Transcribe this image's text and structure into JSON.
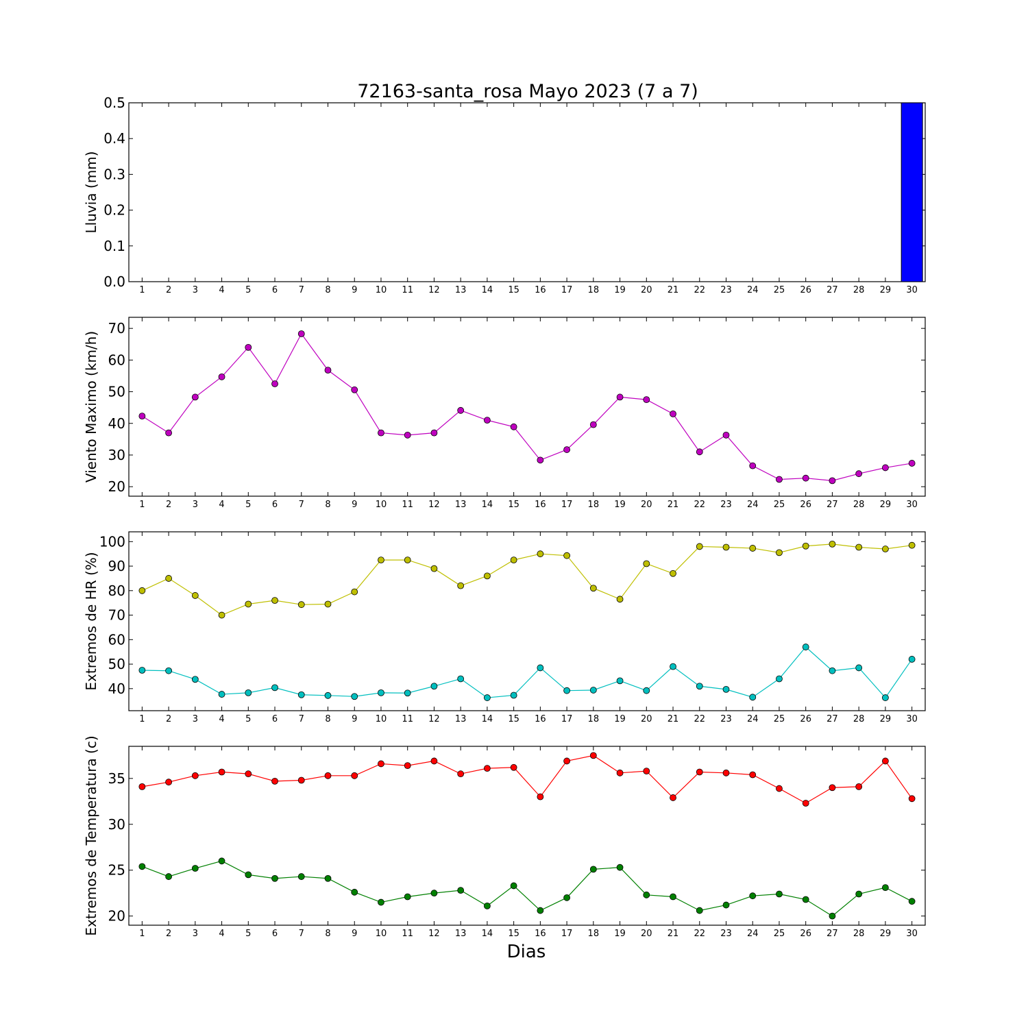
{
  "title": "72163-santa_rosa Mayo 2023  (7 a 7)",
  "xlabel": "Dias",
  "chart_data": [
    {
      "type": "bar",
      "ylabel": "Lluvia (mm)",
      "ylim": [
        0.0,
        0.5
      ],
      "yticks": [
        "0.0",
        "0.1",
        "0.2",
        "0.3",
        "0.4",
        "0.5"
      ],
      "x": [
        1,
        2,
        3,
        4,
        5,
        6,
        7,
        8,
        9,
        10,
        11,
        12,
        13,
        14,
        15,
        16,
        17,
        18,
        19,
        20,
        21,
        22,
        23,
        24,
        25,
        26,
        27,
        28,
        29,
        30
      ],
      "values": [
        0,
        0,
        0,
        0,
        0,
        0,
        0,
        0,
        0,
        0,
        0,
        0,
        0,
        0,
        0,
        0,
        0,
        0,
        0,
        0,
        0,
        0,
        0,
        0,
        0,
        0,
        0,
        0,
        0,
        0.5
      ],
      "color": "#0000ff"
    },
    {
      "type": "line",
      "ylabel": "Viento Maximo (km/h)",
      "ylim": [
        17,
        73.5
      ],
      "yticks": [
        "20",
        "30",
        "40",
        "50",
        "60",
        "70"
      ],
      "x": [
        1,
        2,
        3,
        4,
        5,
        6,
        7,
        8,
        9,
        10,
        11,
        12,
        13,
        14,
        15,
        16,
        17,
        18,
        19,
        20,
        21,
        22,
        23,
        24,
        25,
        26,
        27,
        28,
        29,
        30
      ],
      "series": [
        {
          "color": "#bf00bf",
          "values": [
            42.3,
            37.0,
            48.3,
            54.7,
            64.0,
            52.5,
            68.3,
            56.8,
            50.6,
            37.0,
            36.3,
            37.0,
            44.1,
            41.0,
            38.9,
            28.4,
            31.7,
            39.6,
            48.3,
            47.5,
            43.0,
            31.0,
            36.3,
            26.6,
            22.3,
            22.7,
            21.9,
            24.1,
            26.0,
            27.4
          ]
        }
      ]
    },
    {
      "type": "line",
      "ylabel": "Extremos de HR (%)",
      "ylim": [
        31,
        104
      ],
      "yticks": [
        "40",
        "50",
        "60",
        "70",
        "80",
        "90",
        "100"
      ],
      "x": [
        1,
        2,
        3,
        4,
        5,
        6,
        7,
        8,
        9,
        10,
        11,
        12,
        13,
        14,
        15,
        16,
        17,
        18,
        19,
        20,
        21,
        22,
        23,
        24,
        25,
        26,
        27,
        28,
        29,
        30
      ],
      "series": [
        {
          "color": "#bfbf00",
          "values": [
            80,
            85,
            78,
            70,
            74.5,
            76,
            74.3,
            74.5,
            79.5,
            92.5,
            92.5,
            89,
            82,
            86,
            92.5,
            95,
            94.3,
            81,
            76.5,
            91,
            87,
            98,
            97.7,
            97.3,
            95.5,
            98.2,
            99,
            97.7,
            97,
            98.5
          ]
        },
        {
          "color": "#00bfbf",
          "values": [
            47.5,
            47.3,
            43.8,
            37.7,
            38.3,
            40.4,
            37.5,
            37.2,
            36.8,
            38.3,
            38.2,
            41,
            44,
            36.3,
            37.3,
            48.5,
            39.2,
            39.4,
            43.2,
            39.2,
            49,
            41,
            39.7,
            36.5,
            44,
            57,
            47.3,
            48.5,
            36.3,
            52
          ]
        }
      ]
    },
    {
      "type": "line",
      "ylabel": "Extremos de Temperatura (c)",
      "ylim": [
        19,
        38.5
      ],
      "yticks": [
        "20",
        "25",
        "30",
        "35"
      ],
      "x": [
        1,
        2,
        3,
        4,
        5,
        6,
        7,
        8,
        9,
        10,
        11,
        12,
        13,
        14,
        15,
        16,
        17,
        18,
        19,
        20,
        21,
        22,
        23,
        24,
        25,
        26,
        27,
        28,
        29,
        30
      ],
      "series": [
        {
          "color": "#ff0000",
          "values": [
            34.1,
            34.6,
            35.3,
            35.7,
            35.5,
            34.7,
            34.8,
            35.3,
            35.3,
            36.6,
            36.4,
            36.9,
            35.5,
            36.1,
            36.2,
            33.0,
            36.9,
            37.5,
            35.6,
            35.8,
            32.9,
            35.7,
            35.6,
            35.4,
            33.9,
            32.3,
            34.0,
            34.1,
            36.9,
            32.8
          ]
        },
        {
          "color": "#008000",
          "values": [
            25.4,
            24.3,
            25.2,
            26.0,
            24.5,
            24.1,
            24.3,
            24.1,
            22.6,
            21.5,
            22.1,
            22.5,
            22.8,
            21.1,
            23.3,
            20.6,
            22.0,
            25.1,
            25.3,
            22.3,
            22.1,
            20.6,
            21.2,
            22.2,
            22.4,
            21.8,
            20.0,
            22.4,
            23.1,
            21.6
          ]
        }
      ]
    }
  ]
}
